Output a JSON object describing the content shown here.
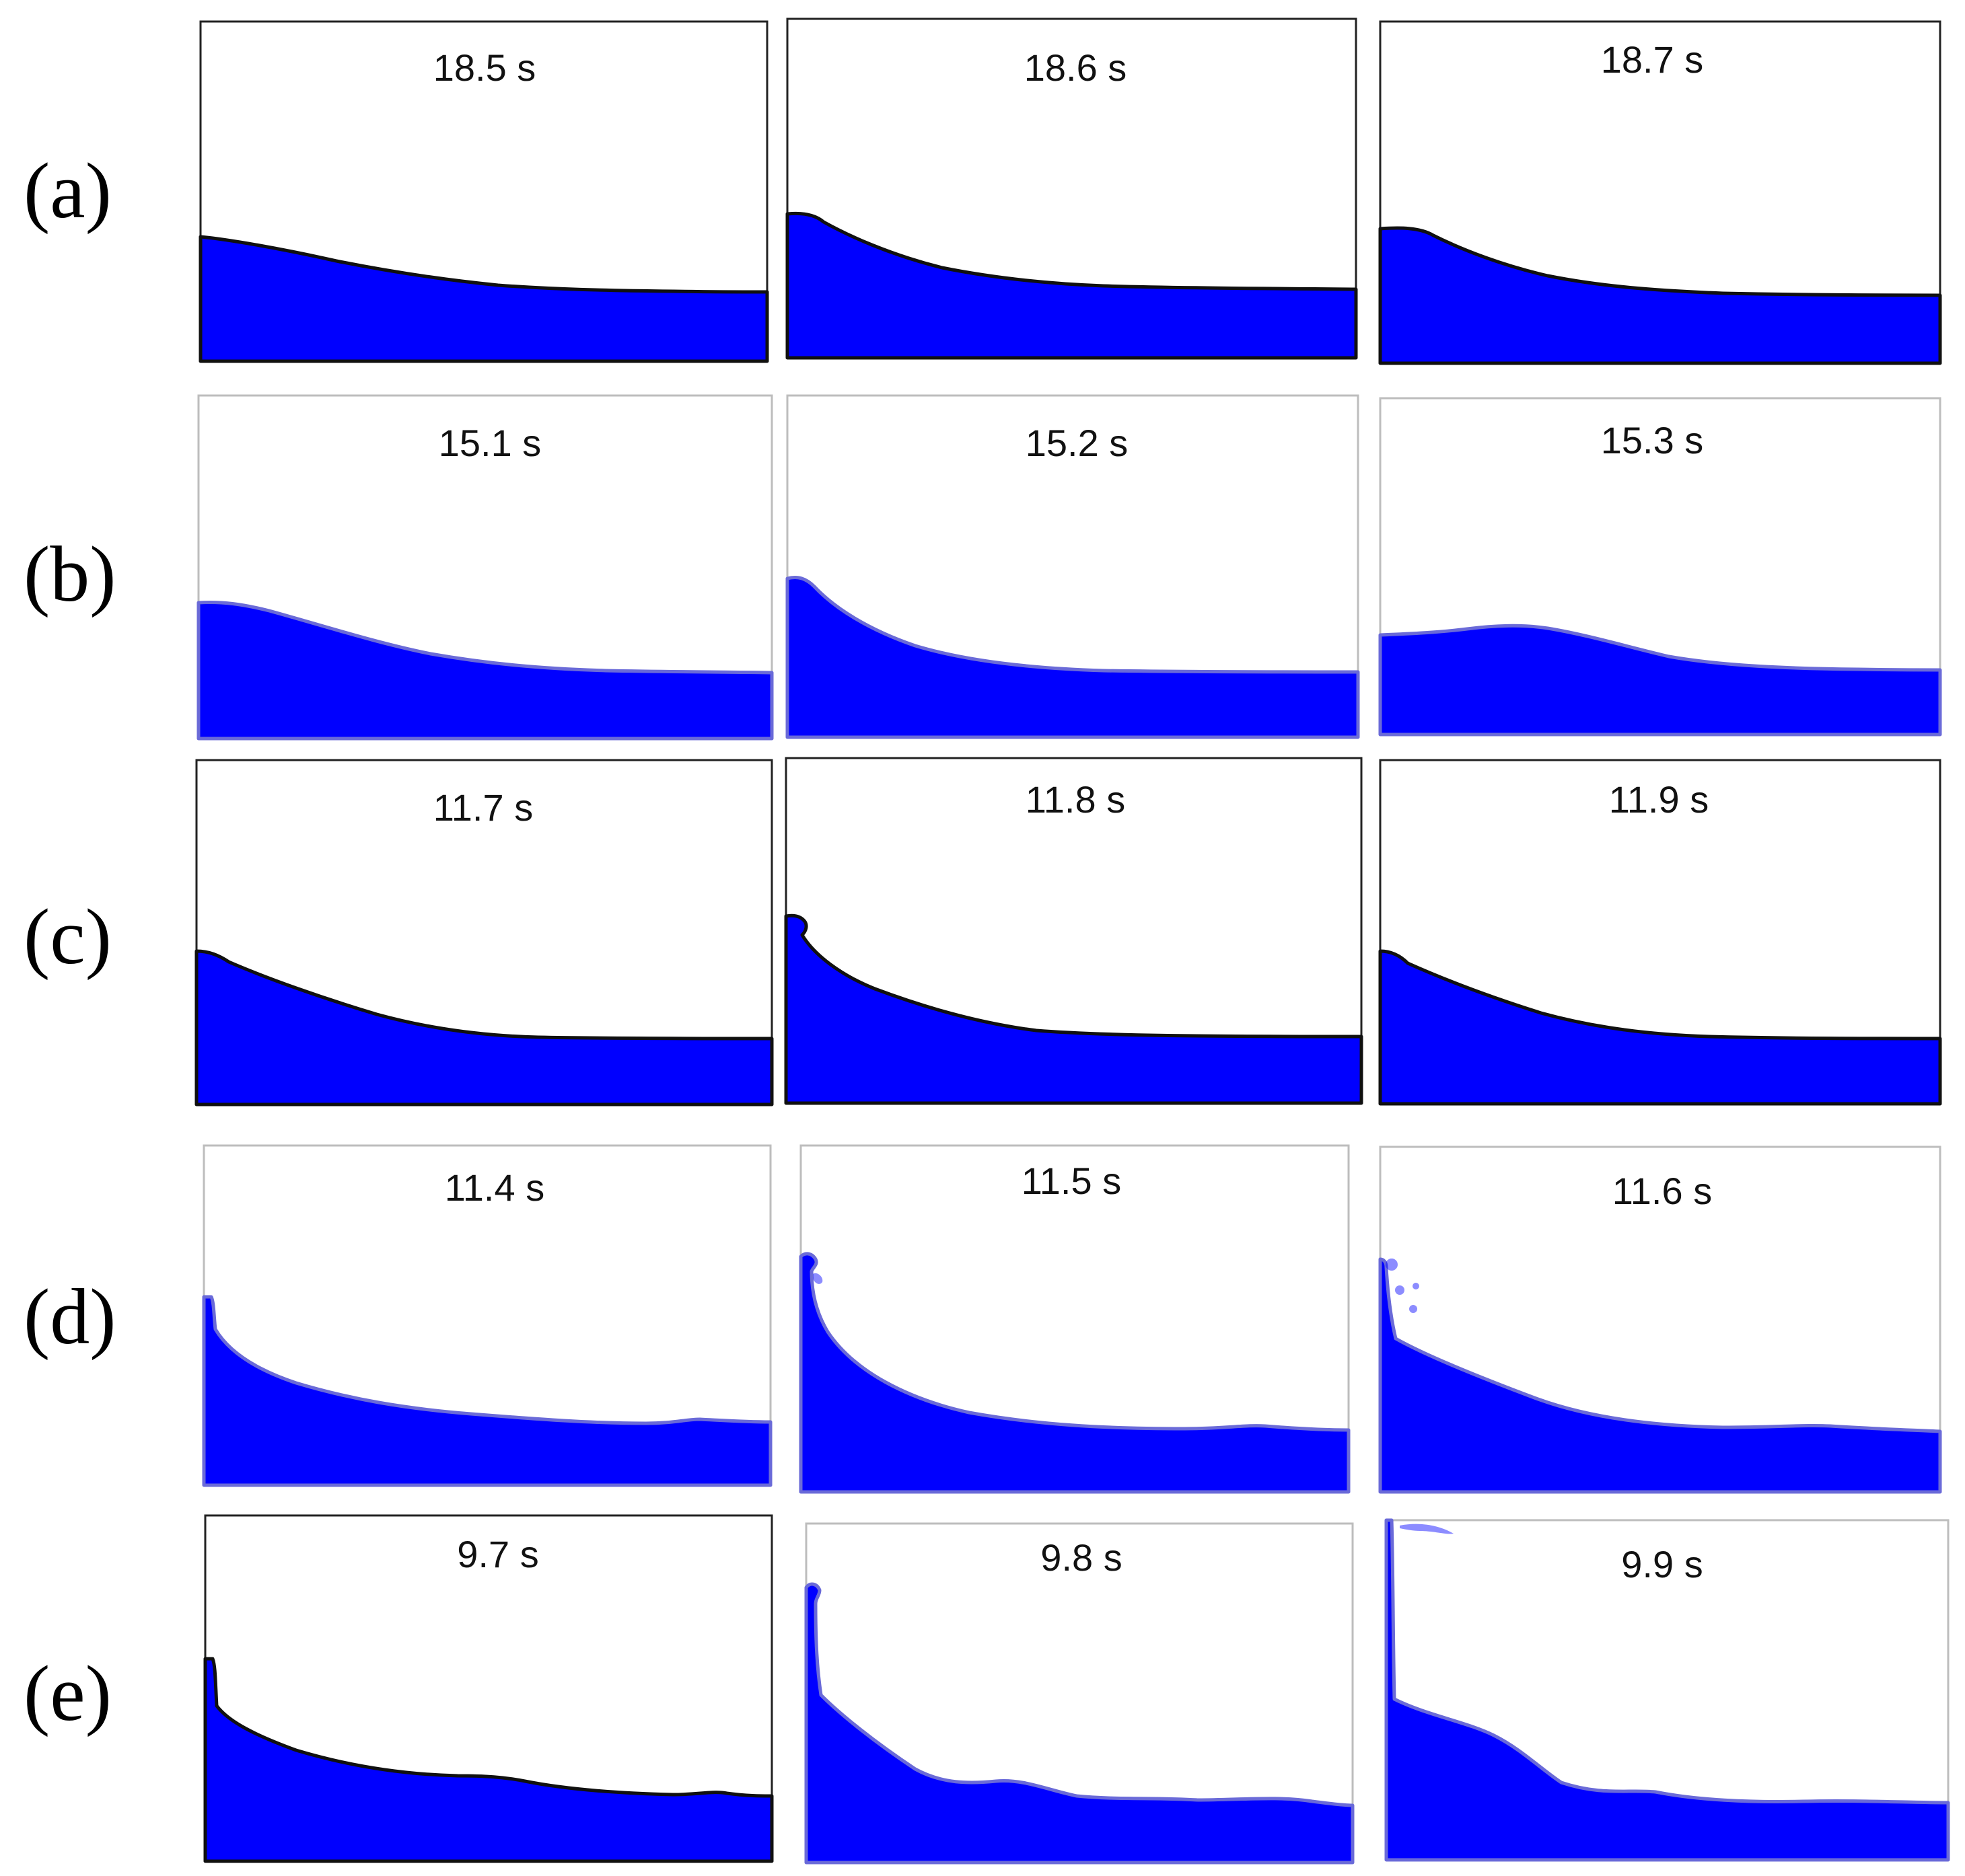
{
  "colors": {
    "water": "#0000ff",
    "surface_dark": "#101010",
    "surface_light": "#6a6ad8",
    "frame_border": "#222222",
    "background": "#ffffff"
  },
  "rows": [
    {
      "label": "(a)",
      "surface_style": "dark",
      "frames": [
        {
          "time": "18.5 s",
          "profile": "gentle"
        },
        {
          "time": "18.6 s",
          "profile": "peaked"
        },
        {
          "time": "18.7 s",
          "profile": "rounded"
        }
      ]
    },
    {
      "label": "(b)",
      "surface_style": "light",
      "frames": [
        {
          "time": "15.1 s",
          "profile": "gentle"
        },
        {
          "time": "15.2 s",
          "profile": "peaked"
        },
        {
          "time": "15.3 s",
          "profile": "hump"
        }
      ]
    },
    {
      "label": "(c)",
      "surface_style": "dark",
      "frames": [
        {
          "time": "11.7 s",
          "profile": "gentle"
        },
        {
          "time": "11.8 s",
          "profile": "curl"
        },
        {
          "time": "11.9 s",
          "profile": "gentle"
        }
      ]
    },
    {
      "label": "(d)",
      "surface_style": "light",
      "frames": [
        {
          "time": "11.4 s",
          "profile": "jet"
        },
        {
          "time": "11.5 s",
          "profile": "jet-curl"
        },
        {
          "time": "11.6 s",
          "profile": "jet-spray"
        }
      ]
    },
    {
      "label": "(e)",
      "surface_style": "mixed",
      "frames": [
        {
          "time": "9.7 s",
          "profile": "jet-dark"
        },
        {
          "time": "9.8 s",
          "profile": "tall-jet"
        },
        {
          "time": "9.9 s",
          "profile": "tall-jet-spray"
        }
      ]
    }
  ]
}
